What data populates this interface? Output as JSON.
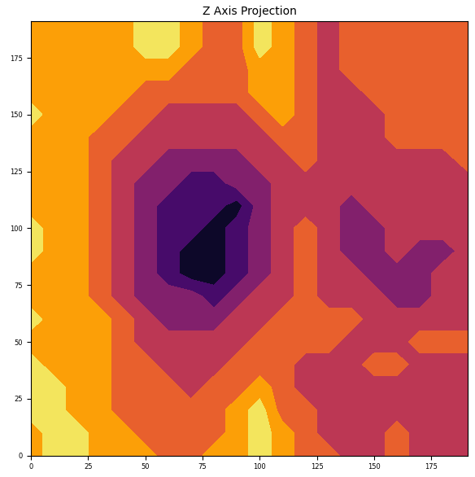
{
  "chart_data": {
    "type": "contour",
    "title": "Z Axis Projection",
    "x": [
      0,
      10,
      20,
      30,
      40,
      50,
      60,
      70,
      80,
      90,
      100,
      110,
      120,
      130,
      140,
      150,
      160,
      170,
      180,
      191
    ],
    "y": [
      0,
      10,
      20,
      30,
      40,
      50,
      60,
      70,
      80,
      90,
      100,
      110,
      120,
      130,
      140,
      150,
      160,
      170,
      180,
      191
    ],
    "cells": [
      [
        5,
        6,
        6,
        5,
        5,
        5,
        4,
        4,
        5,
        5,
        6,
        5,
        4,
        4,
        3,
        3,
        4,
        3,
        3,
        3
      ],
      [
        5,
        6,
        6,
        5,
        5,
        4,
        4,
        4,
        4,
        5,
        6,
        5,
        4,
        3,
        3,
        3,
        4,
        3,
        3,
        3
      ],
      [
        6,
        6,
        5,
        5,
        4,
        4,
        4,
        4,
        4,
        5,
        6,
        4,
        4,
        3,
        3,
        3,
        3,
        3,
        3,
        3
      ],
      [
        6,
        6,
        5,
        5,
        4,
        4,
        4,
        3,
        4,
        4,
        5,
        4,
        3,
        3,
        3,
        3,
        3,
        3,
        3,
        3
      ],
      [
        6,
        5,
        5,
        5,
        4,
        4,
        3,
        3,
        3,
        4,
        4,
        4,
        3,
        3,
        3,
        4,
        4,
        3,
        3,
        3
      ],
      [
        5,
        5,
        5,
        5,
        4,
        3,
        3,
        3,
        3,
        3,
        4,
        4,
        4,
        4,
        3,
        3,
        3,
        4,
        4,
        4
      ],
      [
        6,
        5,
        5,
        5,
        4,
        3,
        2,
        2,
        2,
        3,
        3,
        4,
        4,
        4,
        4,
        3,
        3,
        3,
        3,
        3
      ],
      [
        5,
        5,
        5,
        4,
        3,
        2,
        2,
        2,
        1,
        2,
        3,
        3,
        4,
        3,
        3,
        3,
        2,
        2,
        3,
        3
      ],
      [
        5,
        5,
        5,
        4,
        3,
        2,
        1,
        0,
        0,
        1,
        2,
        3,
        4,
        3,
        3,
        2,
        2,
        2,
        3,
        3
      ],
      [
        6,
        5,
        5,
        4,
        3,
        2,
        1,
        0,
        0,
        1,
        2,
        3,
        4,
        3,
        2,
        2,
        3,
        2,
        2,
        3
      ],
      [
        6,
        5,
        5,
        4,
        3,
        2,
        1,
        1,
        0,
        1,
        2,
        3,
        4,
        3,
        2,
        2,
        3,
        3,
        3,
        3
      ],
      [
        5,
        5,
        5,
        4,
        3,
        2,
        1,
        1,
        1,
        0,
        2,
        3,
        3,
        3,
        2,
        3,
        3,
        3,
        3,
        3
      ],
      [
        5,
        5,
        5,
        4,
        3,
        2,
        2,
        1,
        1,
        2,
        2,
        3,
        3,
        3,
        3,
        3,
        3,
        3,
        3,
        3
      ],
      [
        5,
        5,
        5,
        4,
        3,
        3,
        2,
        2,
        2,
        2,
        3,
        3,
        4,
        3,
        3,
        3,
        3,
        3,
        3,
        4
      ],
      [
        5,
        5,
        5,
        4,
        4,
        3,
        3,
        3,
        3,
        3,
        3,
        4,
        4,
        3,
        3,
        3,
        4,
        4,
        4,
        4
      ],
      [
        6,
        5,
        5,
        5,
        4,
        4,
        3,
        3,
        3,
        3,
        4,
        5,
        4,
        3,
        3,
        3,
        4,
        4,
        4,
        4
      ],
      [
        5,
        5,
        5,
        5,
        5,
        4,
        4,
        4,
        4,
        4,
        5,
        5,
        4,
        3,
        3,
        4,
        4,
        4,
        4,
        4
      ],
      [
        5,
        5,
        5,
        5,
        5,
        5,
        5,
        4,
        4,
        4,
        5,
        5,
        4,
        3,
        4,
        4,
        4,
        4,
        4,
        4
      ],
      [
        5,
        5,
        5,
        5,
        5,
        6,
        6,
        5,
        4,
        4,
        6,
        5,
        4,
        3,
        4,
        4,
        4,
        4,
        4,
        4
      ],
      [
        5,
        5,
        5,
        5,
        5,
        6,
        6,
        5,
        4,
        4,
        6,
        5,
        4,
        3,
        4,
        4,
        4,
        4,
        4,
        4
      ]
    ],
    "levels": [
      -0.5,
      0.5,
      1.5,
      2.5,
      3.5,
      4.5,
      5.5,
      6.5
    ],
    "xlim": [
      0,
      191
    ],
    "ylim": [
      0,
      191
    ],
    "xticks": [
      0,
      25,
      50,
      75,
      100,
      125,
      150,
      175
    ],
    "yticks": [
      0,
      25,
      50,
      75,
      100,
      125,
      150,
      175
    ]
  }
}
